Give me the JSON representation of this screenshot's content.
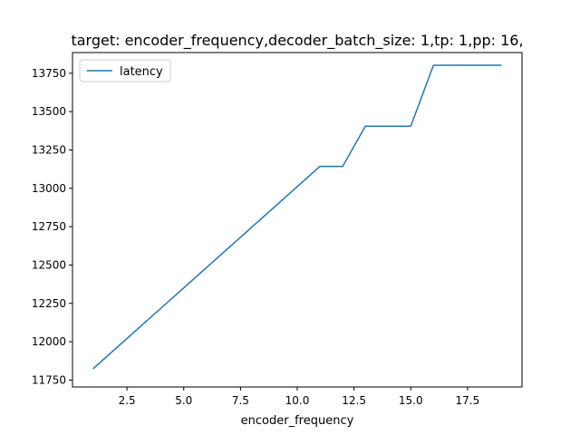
{
  "chart_data": {
    "type": "line",
    "title": "target: encoder_frequency,decoder_batch_size: 1,tp: 1,pp: 16,",
    "xlabel": "encoder_frequency",
    "ylabel": "",
    "xlim": [
      0.1,
      19.9
    ],
    "ylim": [
      11705,
      13885
    ],
    "x_ticks": [
      2.5,
      5.0,
      7.5,
      10.0,
      12.5,
      15.0,
      17.5
    ],
    "x_tick_labels": [
      "2.5",
      "5.0",
      "7.5",
      "10.0",
      "12.5",
      "15.0",
      "17.5"
    ],
    "y_ticks": [
      11750,
      12000,
      12250,
      12500,
      12750,
      13000,
      13250,
      13500,
      13750
    ],
    "y_tick_labels": [
      "11750",
      "12000",
      "12250",
      "12500",
      "12750",
      "13000",
      "13250",
      "13500",
      "13750"
    ],
    "grid": false,
    "legend_position": "top-left",
    "series": [
      {
        "name": "latency",
        "color": "#1f77b4",
        "x": [
          1,
          2,
          3,
          4,
          5,
          6,
          7,
          8,
          9,
          10,
          11,
          12,
          13,
          14,
          15,
          16,
          17,
          18,
          19
        ],
        "y": [
          11823,
          11955,
          12087,
          12219,
          12351,
          12483,
          12615,
          12747,
          12879,
          13011,
          13143,
          13143,
          13405,
          13405,
          13405,
          13802,
          13802,
          13802,
          13802
        ]
      }
    ]
  }
}
